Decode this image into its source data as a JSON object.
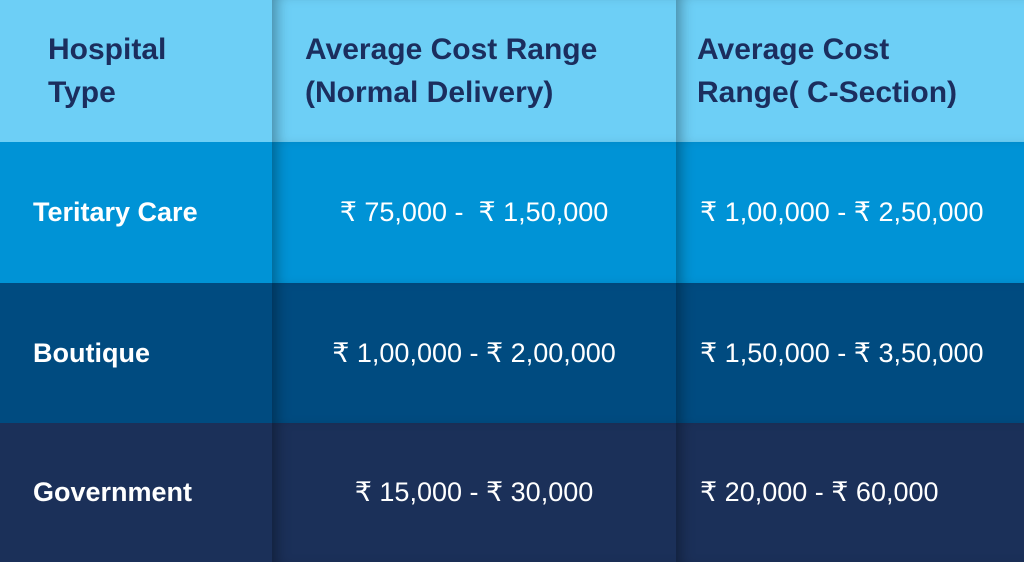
{
  "table": {
    "header": [
      "Hospital Type",
      "Average Cost Range (Normal Delivery)",
      "Average Cost Range( C-Section)"
    ],
    "rows": [
      [
        "Teritary Care",
        "₹ 75,000 -  ₹ 1,50,000",
        "₹ 1,00,000 - ₹ 2,50,000"
      ],
      [
        "Boutique",
        "₹ 1,00,000 - ₹ 2,00,000",
        "₹ 1,50,000 - ₹ 3,50,000"
      ],
      [
        "Government",
        "₹ 15,000 - ₹ 30,000",
        "₹ 20,000 - ₹ 60,000"
      ]
    ]
  }
}
